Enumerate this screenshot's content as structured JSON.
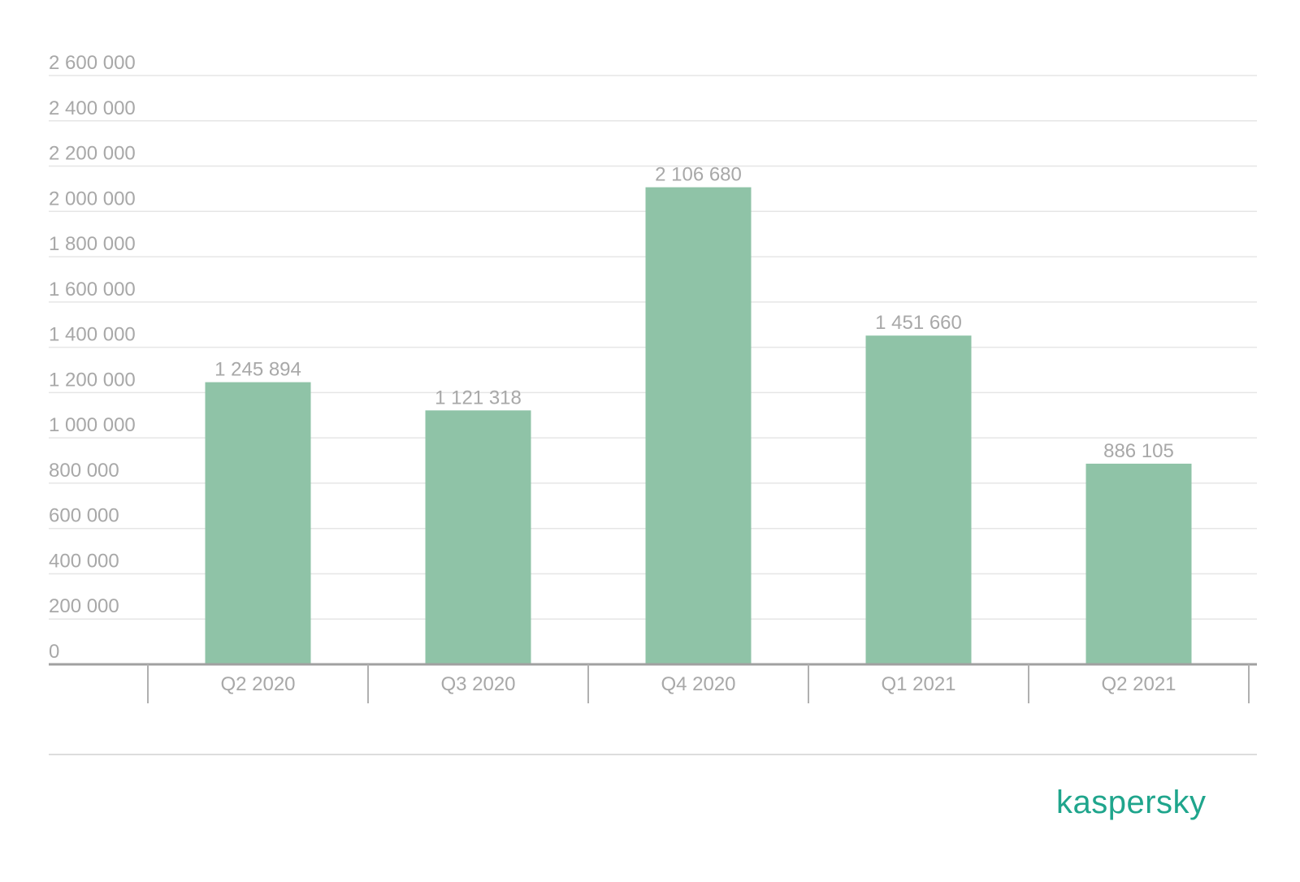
{
  "chart_data": {
    "type": "bar",
    "categories": [
      "Q2 2020",
      "Q3 2020",
      "Q4 2020",
      "Q1 2021",
      "Q2 2021"
    ],
    "values": [
      1245894,
      1121318,
      2106680,
      1451660,
      886105
    ],
    "data_labels": [
      "1 245 894",
      "1 121 318",
      "2 106 680",
      "1 451 660",
      "886 105"
    ],
    "y_ticks": [
      {
        "value": 0,
        "label": "0"
      },
      {
        "value": 200000,
        "label": "200 000"
      },
      {
        "value": 400000,
        "label": "400 000"
      },
      {
        "value": 600000,
        "label": "600 000"
      },
      {
        "value": 800000,
        "label": "800 000"
      },
      {
        "value": 1000000,
        "label": "1 000 000"
      },
      {
        "value": 1200000,
        "label": "1 200 000"
      },
      {
        "value": 1400000,
        "label": "1 400 000"
      },
      {
        "value": 1600000,
        "label": "1 600 000"
      },
      {
        "value": 1800000,
        "label": "1 800 000"
      },
      {
        "value": 2000000,
        "label": "2 000 000"
      },
      {
        "value": 2200000,
        "label": "2 200 000"
      },
      {
        "value": 2400000,
        "label": "2 400 000"
      },
      {
        "value": 2600000,
        "label": "2 600 000"
      }
    ],
    "ylim": [
      0,
      2600000
    ],
    "title": "",
    "xlabel": "",
    "ylabel": "",
    "grid": true,
    "bar_color": "#8fc3a7",
    "label_color": "#a8a8a8",
    "gridline_color": "#e6e6e6",
    "axis_color": "#a0a0a0"
  },
  "brand": {
    "text": "kaspersky",
    "color": "#1fa58c"
  }
}
